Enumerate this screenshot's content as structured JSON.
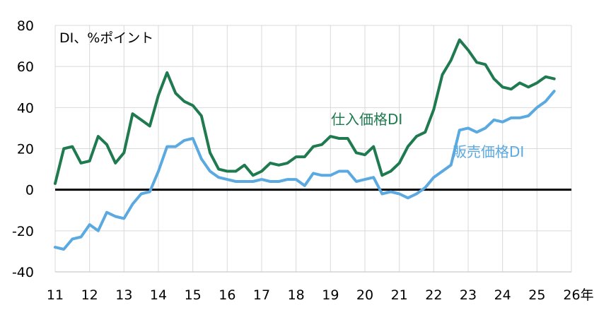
{
  "chart_data": {
    "type": "line",
    "unit_label": "DI、%ポイント",
    "x_suffix": "年",
    "x_ticks": [
      "11",
      "12",
      "13",
      "14",
      "15",
      "16",
      "17",
      "18",
      "19",
      "20",
      "21",
      "22",
      "23",
      "24",
      "25",
      "26"
    ],
    "y_ticks": [
      80,
      60,
      40,
      20,
      0,
      -20,
      -40
    ],
    "xlim": [
      11,
      26
    ],
    "ylim": [
      -40,
      80
    ],
    "grid": true,
    "colors": {
      "purchase": "#1f7a4f",
      "selling": "#5aa9e0",
      "zero": "#000000",
      "grid": "#d9d9d9"
    },
    "series": [
      {
        "name": "仕入価格DI",
        "color": "#1f7a4f",
        "x": [
          11,
          11.25,
          11.5,
          11.75,
          12,
          12.25,
          12.5,
          12.75,
          13,
          13.25,
          13.5,
          13.75,
          14,
          14.25,
          14.5,
          14.75,
          15,
          15.25,
          15.5,
          15.75,
          16,
          16.25,
          16.5,
          16.75,
          17,
          17.25,
          17.5,
          17.75,
          18,
          18.25,
          18.5,
          18.75,
          19,
          19.25,
          19.5,
          19.75,
          20,
          20.25,
          20.5,
          20.75,
          21,
          21.25,
          21.5,
          21.75,
          22,
          22.25,
          22.5,
          22.75,
          23,
          23.25,
          23.5,
          23.75,
          24,
          24.25,
          24.5,
          24.75,
          25,
          25.25,
          25.5
        ],
        "values": [
          3,
          20,
          21,
          13,
          14,
          26,
          22,
          13,
          18,
          37,
          34,
          31,
          46,
          57,
          47,
          43,
          41,
          36,
          18,
          10,
          9,
          9,
          12,
          7,
          9,
          13,
          12,
          13,
          16,
          16,
          21,
          22,
          26,
          25,
          25,
          18,
          17,
          21,
          7,
          9,
          13,
          21,
          26,
          28,
          39,
          56,
          63,
          73,
          68,
          62,
          61,
          54,
          50,
          49,
          52,
          50,
          52,
          55,
          54
        ]
      },
      {
        "name": "販売価格DI",
        "color": "#5aa9e0",
        "x": [
          11,
          11.25,
          11.5,
          11.75,
          12,
          12.25,
          12.5,
          12.75,
          13,
          13.25,
          13.5,
          13.75,
          14,
          14.25,
          14.5,
          14.75,
          15,
          15.25,
          15.5,
          15.75,
          16,
          16.25,
          16.5,
          16.75,
          17,
          17.25,
          17.5,
          17.75,
          18,
          18.25,
          18.5,
          18.75,
          19,
          19.25,
          19.5,
          19.75,
          20,
          20.25,
          20.5,
          20.75,
          21,
          21.25,
          21.5,
          21.75,
          22,
          22.25,
          22.5,
          22.75,
          23,
          23.25,
          23.5,
          23.75,
          24,
          24.25,
          24.5,
          24.75,
          25,
          25.25,
          25.5
        ],
        "values": [
          -28,
          -29,
          -24,
          -23,
          -17,
          -20,
          -11,
          -13,
          -14,
          -7,
          -2,
          -1,
          9,
          21,
          21,
          24,
          25,
          15,
          9,
          6,
          5,
          4,
          4,
          4,
          5,
          4,
          4,
          5,
          5,
          2,
          8,
          7,
          7,
          9,
          9,
          4,
          5,
          6,
          -2,
          -1,
          -2,
          -4,
          -2,
          1,
          6,
          9,
          12,
          29,
          30,
          28,
          30,
          34,
          33,
          35,
          35,
          36,
          40,
          43,
          48
        ]
      }
    ]
  }
}
